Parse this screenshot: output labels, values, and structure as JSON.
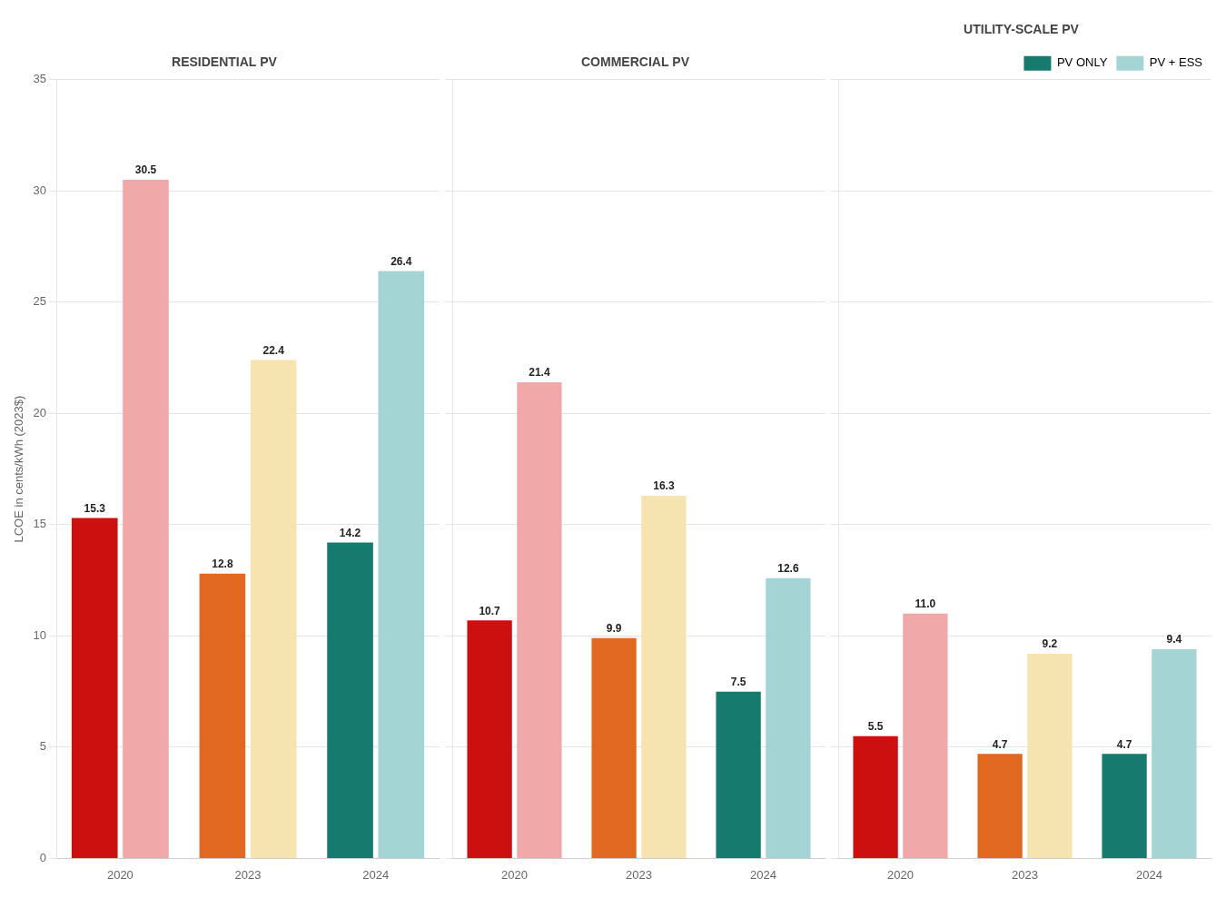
{
  "chart_data": [
    {
      "type": "bar",
      "title": "RESIDENTIAL PV",
      "categories": [
        "2020",
        "2023",
        "2024"
      ],
      "series": [
        {
          "name": "PV ONLY",
          "colors": [
            "#cc0f0f",
            "#e06820",
            "#177a6e"
          ],
          "values": [
            15.3,
            12.8,
            14.2
          ]
        },
        {
          "name": "PV + ESS",
          "colors": [
            "#f0a8a8",
            "#f5e4b0",
            "#a4d4d4"
          ],
          "values": [
            30.5,
            22.4,
            26.4
          ]
        }
      ],
      "ylabel": "LCOE in cents/kWh (2023$)",
      "ylim": [
        0,
        35
      ],
      "yticks": [
        0,
        5,
        10,
        15,
        20,
        25,
        30,
        35
      ],
      "grid": true,
      "data_labels": true
    },
    {
      "type": "bar",
      "title": "COMMERCIAL PV",
      "categories": [
        "2020",
        "2023",
        "2024"
      ],
      "series": [
        {
          "name": "PV ONLY",
          "colors": [
            "#cc0f0f",
            "#e06820",
            "#177a6e"
          ],
          "values": [
            10.7,
            9.9,
            7.5
          ]
        },
        {
          "name": "PV + ESS",
          "colors": [
            "#f0a8a8",
            "#f5e4b0",
            "#a4d4d4"
          ],
          "values": [
            21.4,
            16.3,
            12.6
          ]
        }
      ],
      "ylim": [
        0,
        35
      ],
      "yticks": [
        0,
        5,
        10,
        15,
        20,
        25,
        30,
        35
      ],
      "grid": true,
      "data_labels": true,
      "tick_labels": "x"
    },
    {
      "type": "bar",
      "title": "UTILITY-SCALE PV",
      "categories": [
        "2020",
        "2023",
        "2024"
      ],
      "series": [
        {
          "name": "PV ONLY",
          "color": "#177a6e",
          "colors": [
            "#cc0f0f",
            "#e06820",
            "#177a6e"
          ],
          "values": [
            5.5,
            4.7,
            4.7
          ]
        },
        {
          "name": "PV + ESS",
          "color": "#a4d4d4",
          "colors": [
            "#f0a8a8",
            "#f5e4b0",
            "#a4d4d4"
          ],
          "values": [
            11.0,
            9.2,
            9.4
          ],
          "value_labels": [
            "11.0",
            "9.2",
            "9.4"
          ]
        }
      ],
      "ylim": [
        0,
        35
      ],
      "yticks": [
        0,
        5,
        10,
        15,
        20,
        25,
        30,
        35
      ],
      "grid": true,
      "data_labels": true,
      "tick_labels": "x",
      "legend": "upper right"
    }
  ]
}
